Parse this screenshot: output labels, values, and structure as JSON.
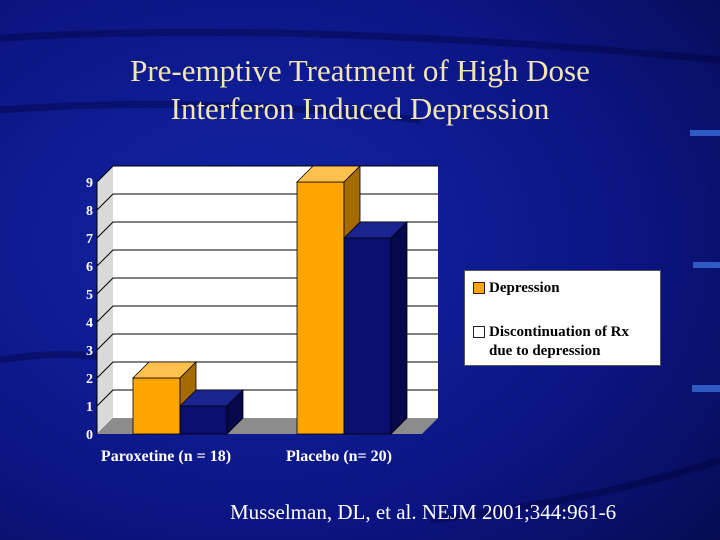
{
  "title_lines": [
    "Pre-emptive Treatment of High Dose",
    "Interferon Induced Depression"
  ],
  "citation": "Musselman, DL, et al. NEJM 2001;344:961-6",
  "colors": {
    "background": "#0a0f6e",
    "title": "#f2e6b0",
    "depression": "#ffa500",
    "discontinuation": "#0a0f6e",
    "plot_area": "#ffffff"
  },
  "chart_data": {
    "type": "bar",
    "title": "",
    "xlabel": "",
    "ylabel": "",
    "categories": [
      "Paroxetine (n = 18)",
      "Placebo (n= 20)"
    ],
    "series": [
      {
        "name": "Depression",
        "values": [
          2,
          9
        ]
      },
      {
        "name": "Discontinuation of Rx due to depression",
        "values": [
          1,
          7
        ]
      }
    ],
    "ylim": [
      0,
      9
    ],
    "yticks": [
      0,
      1,
      2,
      3,
      4,
      5,
      6,
      7,
      8,
      9
    ],
    "grid": true,
    "legend_position": "right",
    "legend": [
      {
        "lines": [
          "Depression"
        ]
      },
      {
        "lines": [
          "Discontinuation of Rx",
          "due to depression"
        ]
      }
    ]
  }
}
